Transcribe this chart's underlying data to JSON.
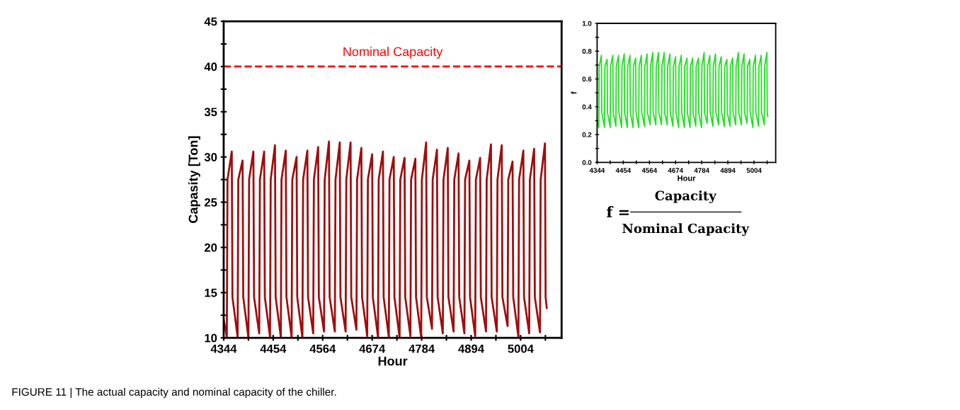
{
  "chart_data": [
    {
      "type": "line",
      "xlabel": "Hour",
      "ylabel": "Capasity [Ton]",
      "x": [
        4344,
        4351,
        4352.5,
        4362,
        4363.5,
        4375,
        4376.5,
        4386,
        4387.5,
        4399,
        4400.5,
        4410,
        4411.5,
        4423,
        4424.5,
        4434,
        4435.5,
        4447,
        4448.5,
        4458,
        4459.5,
        4471,
        4472.5,
        4482,
        4483.5,
        4495,
        4496.5,
        4506,
        4507.5,
        4519,
        4520.5,
        4530,
        4531.5,
        4543,
        4544.5,
        4554,
        4555.5,
        4567,
        4568.5,
        4578,
        4579.5,
        4591,
        4592.5,
        4602,
        4603.5,
        4615,
        4616.5,
        4626,
        4627.5,
        4639,
        4640.5,
        4650,
        4651.5,
        4663,
        4664.5,
        4674,
        4675.5,
        4687,
        4688.5,
        4698,
        4699.5,
        4711,
        4712.5,
        4722,
        4723.5,
        4735,
        4736.5,
        4746,
        4747.5,
        4759,
        4760.5,
        4770,
        4771.5,
        4783,
        4784.5,
        4794,
        4795.5,
        4807,
        4808.5,
        4818,
        4819.5,
        4831,
        4832.5,
        4842,
        4843.5,
        4855,
        4856.5,
        4866,
        4867.5,
        4879,
        4880.5,
        4890,
        4891.5,
        4903,
        4904.5,
        4914,
        4915.5,
        4927,
        4928.5,
        4938,
        4939.5,
        4951,
        4952.5,
        4962,
        4963.5,
        4975,
        4976.5,
        4986,
        4987.5,
        4999,
        5000.5,
        5010,
        5011.5,
        5023,
        5024.5,
        5034,
        5035.5,
        5047,
        5048.5,
        5058,
        5059.5,
        5062
      ],
      "series": [
        {
          "color": "#a00d0d",
          "values": [
            12.0,
            10.1,
            27.5,
            30.6,
            14.5,
            10.1,
            27.5,
            29.6,
            14.5,
            10.0,
            27.5,
            30.6,
            14.5,
            10.5,
            27.5,
            30.6,
            14.5,
            10.1,
            27.5,
            31.3,
            14.5,
            10.1,
            27.5,
            30.7,
            14.5,
            10.1,
            27.5,
            30.0,
            14.5,
            10.0,
            27.5,
            30.7,
            14.5,
            10.5,
            27.5,
            31.1,
            14.5,
            10.7,
            27.5,
            31.7,
            14.5,
            10.7,
            27.5,
            31.6,
            14.5,
            10.7,
            27.5,
            31.6,
            14.5,
            10.9,
            27.5,
            31.0,
            14.5,
            10.2,
            27.5,
            30.3,
            14.5,
            10.1,
            27.5,
            30.6,
            14.5,
            10.1,
            27.5,
            30.0,
            14.5,
            10.0,
            27.5,
            29.9,
            14.5,
            10.2,
            27.5,
            29.8,
            14.5,
            10.0,
            27.5,
            31.6,
            14.5,
            11.0,
            27.5,
            30.8,
            14.5,
            10.5,
            27.5,
            31.0,
            14.5,
            10.7,
            27.5,
            30.4,
            14.5,
            10.5,
            27.5,
            29.6,
            14.5,
            10.2,
            27.5,
            29.9,
            14.5,
            10.7,
            27.5,
            31.4,
            14.5,
            10.7,
            27.5,
            31.3,
            14.5,
            11.3,
            27.5,
            29.5,
            14.5,
            10.1,
            27.5,
            30.7,
            14.5,
            10.5,
            27.5,
            30.9,
            14.5,
            10.6,
            27.5,
            31.5,
            14.5,
            13.3
          ]
        }
      ],
      "xlim": [
        4344,
        5095
      ],
      "ylim": [
        10,
        45
      ],
      "xticks": [
        4344,
        {
          "value": 4399,
          "label": null
        },
        4454,
        {
          "value": 4509,
          "label": null
        },
        4564,
        {
          "value": 4619,
          "label": null
        },
        4674,
        {
          "value": 4729,
          "label": null
        },
        4784,
        {
          "value": 4839,
          "label": null
        },
        4894,
        {
          "value": 4949,
          "label": null
        },
        5004,
        {
          "value": 5059,
          "label": null
        }
      ],
      "yticks": [
        10,
        {
          "value": 12.5,
          "label": null
        },
        15,
        {
          "value": 17.5,
          "label": null
        },
        20,
        {
          "value": 22.5,
          "label": null
        },
        25,
        {
          "value": 27.5,
          "label": null
        },
        30,
        {
          "value": 32.5,
          "label": null
        },
        35,
        {
          "value": 37.5,
          "label": null
        },
        40,
        {
          "value": 42.5,
          "label": null
        },
        45
      ],
      "ref_lines": [
        {
          "axis": "y",
          "value": 40,
          "label": "Nominal Capacity",
          "color": "#ff0000",
          "line_style": "dashed"
        }
      ],
      "grid": false,
      "marker": "none",
      "line_style": "solid",
      "annotations": [
        "FIGURE 11 | The actual capacity and nominal capacity of the chiller."
      ]
    },
    {
      "type": "line",
      "xlabel": "Hour",
      "ylabel": "f",
      "x": [
        4344,
        4351,
        4352.5,
        4362,
        4363.5,
        4375,
        4376.5,
        4386,
        4387.5,
        4399,
        4400.5,
        4410,
        4411.5,
        4423,
        4424.5,
        4434,
        4435.5,
        4447,
        4448.5,
        4458,
        4459.5,
        4471,
        4472.5,
        4482,
        4483.5,
        4495,
        4496.5,
        4506,
        4507.5,
        4519,
        4520.5,
        4530,
        4531.5,
        4543,
        4544.5,
        4554,
        4555.5,
        4567,
        4568.5,
        4578,
        4579.5,
        4591,
        4592.5,
        4602,
        4603.5,
        4615,
        4616.5,
        4626,
        4627.5,
        4639,
        4640.5,
        4650,
        4651.5,
        4663,
        4664.5,
        4674,
        4675.5,
        4687,
        4688.5,
        4698,
        4699.5,
        4711,
        4712.5,
        4722,
        4723.5,
        4735,
        4736.5,
        4746,
        4747.5,
        4759,
        4760.5,
        4770,
        4771.5,
        4783,
        4784.5,
        4794,
        4795.5,
        4807,
        4808.5,
        4818,
        4819.5,
        4831,
        4832.5,
        4842,
        4843.5,
        4855,
        4856.5,
        4866,
        4867.5,
        4879,
        4880.5,
        4890,
        4891.5,
        4903,
        4904.5,
        4914,
        4915.5,
        4927,
        4928.5,
        4938,
        4939.5,
        4951,
        4952.5,
        4962,
        4963.5,
        4975,
        4976.5,
        4986,
        4987.5,
        4999,
        5000.5,
        5010,
        5011.5,
        5023,
        5024.5,
        5034,
        5035.5,
        5047,
        5048.5,
        5058,
        5059.5,
        5062
      ],
      "series": [
        {
          "color": "#22e022",
          "values": [
            0.3,
            0.25,
            0.69,
            0.77,
            0.36,
            0.25,
            0.69,
            0.74,
            0.36,
            0.25,
            0.69,
            0.77,
            0.36,
            0.26,
            0.69,
            0.77,
            0.36,
            0.25,
            0.69,
            0.78,
            0.36,
            0.25,
            0.69,
            0.77,
            0.36,
            0.25,
            0.69,
            0.75,
            0.36,
            0.25,
            0.69,
            0.77,
            0.36,
            0.26,
            0.69,
            0.78,
            0.36,
            0.27,
            0.69,
            0.79,
            0.36,
            0.27,
            0.69,
            0.79,
            0.36,
            0.27,
            0.69,
            0.79,
            0.36,
            0.27,
            0.69,
            0.78,
            0.36,
            0.26,
            0.69,
            0.76,
            0.36,
            0.25,
            0.69,
            0.77,
            0.36,
            0.25,
            0.69,
            0.75,
            0.36,
            0.25,
            0.69,
            0.75,
            0.36,
            0.26,
            0.69,
            0.75,
            0.36,
            0.25,
            0.69,
            0.79,
            0.36,
            0.28,
            0.69,
            0.77,
            0.36,
            0.26,
            0.69,
            0.78,
            0.36,
            0.27,
            0.69,
            0.76,
            0.36,
            0.26,
            0.69,
            0.74,
            0.36,
            0.26,
            0.69,
            0.75,
            0.36,
            0.27,
            0.69,
            0.79,
            0.36,
            0.27,
            0.69,
            0.78,
            0.36,
            0.28,
            0.69,
            0.74,
            0.36,
            0.25,
            0.69,
            0.77,
            0.36,
            0.26,
            0.69,
            0.77,
            0.36,
            0.27,
            0.69,
            0.79,
            0.36,
            0.33
          ]
        }
      ],
      "xlim": [
        4344,
        5095
      ],
      "ylim": [
        0,
        1
      ],
      "xticks": [
        4344,
        {
          "value": 4399,
          "label": null
        },
        4454,
        {
          "value": 4509,
          "label": null
        },
        4564,
        {
          "value": 4619,
          "label": null
        },
        4674,
        {
          "value": 4729,
          "label": null
        },
        4784,
        {
          "value": 4839,
          "label": null
        },
        4894,
        {
          "value": 4949,
          "label": null
        },
        5004,
        {
          "value": 5059,
          "label": null
        }
      ],
      "yticks": [
        {
          "value": 0,
          "label": "0.0"
        },
        {
          "value": 0.1,
          "label": null
        },
        0.2,
        {
          "value": 0.3,
          "label": null
        },
        0.4,
        {
          "value": 0.5,
          "label": null
        },
        0.6,
        {
          "value": 0.7,
          "label": null
        },
        0.8,
        {
          "value": 0.9,
          "label": null
        },
        {
          "value": 1,
          "label": "1.0"
        }
      ],
      "grid": false,
      "marker": "none",
      "line_style": "solid",
      "annotations": [
        "f =",
        "Capacity",
        "Nominal Capacity"
      ]
    }
  ]
}
